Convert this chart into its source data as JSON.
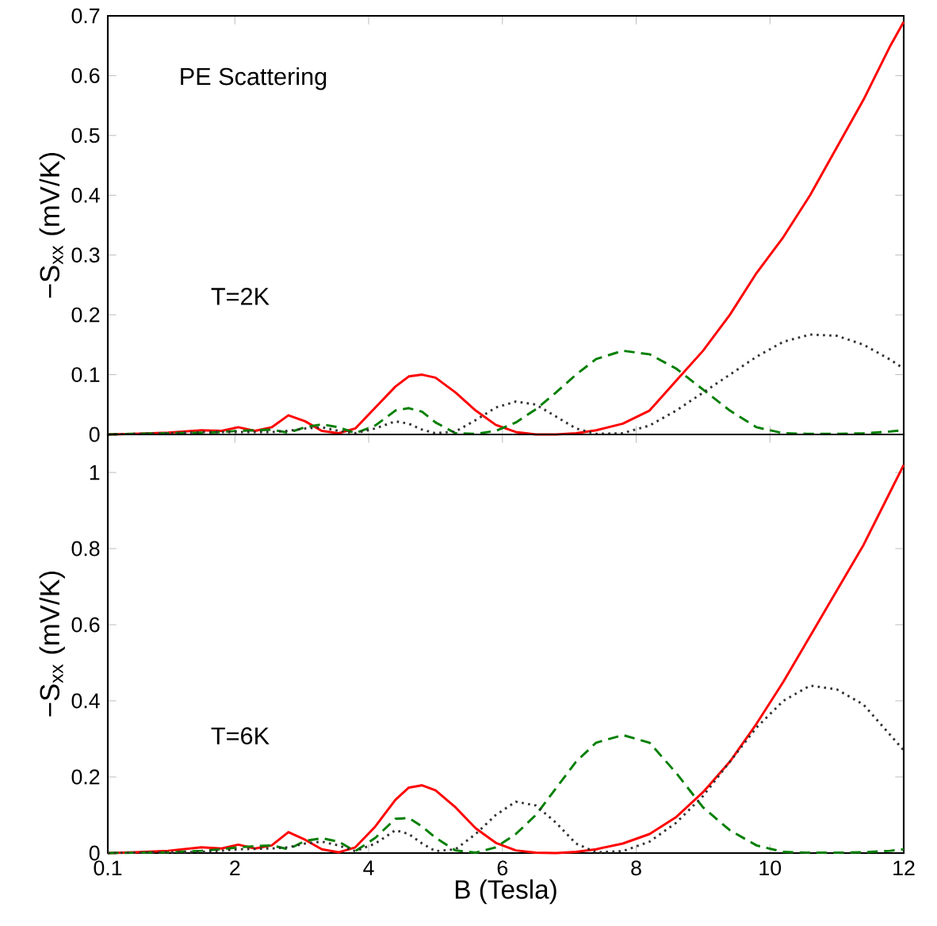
{
  "chart_data": [
    {
      "type": "line",
      "ylabel": "−S$_{xx}$ (mV/K)",
      "annotations": [
        "PE Scattering",
        "T=2K"
      ],
      "x": [
        0.1,
        0.5,
        1,
        1.5,
        1.8,
        2.05,
        2.3,
        2.55,
        2.8,
        3.05,
        3.3,
        3.55,
        3.8,
        4.1,
        4.4,
        4.6,
        4.8,
        5.0,
        5.3,
        5.6,
        5.9,
        6.2,
        6.5,
        6.8,
        7.1,
        7.4,
        7.8,
        8.2,
        8.6,
        9.0,
        9.4,
        9.8,
        10.2,
        10.6,
        11.0,
        11.4,
        11.8,
        12
      ],
      "series": [
        {
          "color": "#ff0000",
          "line_style": "solid",
          "values": [
            0,
            0.001,
            0.003,
            0.007,
            0.006,
            0.012,
            0.006,
            0.012,
            0.032,
            0.022,
            0.006,
            0.002,
            0.01,
            0.045,
            0.08,
            0.097,
            0.1,
            0.095,
            0.07,
            0.04,
            0.016,
            0.004,
            0,
            0,
            0.002,
            0.007,
            0.018,
            0.04,
            0.09,
            0.14,
            0.2,
            0.27,
            0.33,
            0.4,
            0.48,
            0.56,
            0.65,
            0.69
          ]
        },
        {
          "color": "#007f00",
          "line_style": "dashed",
          "values": [
            0,
            0.001,
            0.002,
            0.003,
            0.004,
            0.006,
            0.007,
            0.008,
            0.003,
            0.012,
            0.017,
            0.012,
            0.002,
            0.015,
            0.04,
            0.044,
            0.038,
            0.02,
            0.002,
            0.001,
            0.006,
            0.02,
            0.042,
            0.07,
            0.1,
            0.126,
            0.14,
            0.134,
            0.11,
            0.075,
            0.04,
            0.012,
            0.002,
            0.001,
            0.001,
            0.002,
            0.005,
            0.007
          ]
        },
        {
          "color": "#333333",
          "line_style": "dotted",
          "values": [
            0,
            0.001,
            0.002,
            0.004,
            0.004,
            0.004,
            0.004,
            0.004,
            0.006,
            0.01,
            0.012,
            0.006,
            0.002,
            0.01,
            0.022,
            0.018,
            0.008,
            0.002,
            0.005,
            0.024,
            0.045,
            0.055,
            0.05,
            0.03,
            0.01,
            0.001,
            0.002,
            0.015,
            0.04,
            0.07,
            0.1,
            0.13,
            0.155,
            0.167,
            0.165,
            0.15,
            0.125,
            0.11
          ]
        }
      ],
      "xlim": [
        0.1,
        12
      ],
      "xticks": [
        0.1,
        2,
        4,
        6,
        8,
        10,
        12
      ],
      "ylim": [
        0,
        0.7
      ],
      "yticks": [
        0,
        0.1,
        0.2,
        0.3,
        0.4,
        0.5,
        0.6,
        0.7
      ],
      "tick_labels": "y"
    },
    {
      "type": "line",
      "xlabel": "B (Tesla)",
      "ylabel": "−S$_{xx}$ (mV/K)",
      "annotations": [
        "T=6K"
      ],
      "x": [
        0.1,
        0.5,
        1,
        1.5,
        1.8,
        2.05,
        2.3,
        2.55,
        2.8,
        3.05,
        3.3,
        3.55,
        3.8,
        4.1,
        4.4,
        4.6,
        4.8,
        5.0,
        5.3,
        5.6,
        5.9,
        6.2,
        6.5,
        6.8,
        7.1,
        7.4,
        7.8,
        8.2,
        8.6,
        9.0,
        9.4,
        9.8,
        10.2,
        10.6,
        11.0,
        11.4,
        11.8,
        12
      ],
      "series": [
        {
          "color": "#ff0000",
          "line_style": "solid",
          "values": [
            0,
            0.002,
            0.006,
            0.015,
            0.012,
            0.022,
            0.012,
            0.02,
            0.055,
            0.035,
            0.01,
            0.002,
            0.015,
            0.07,
            0.14,
            0.172,
            0.178,
            0.165,
            0.12,
            0.065,
            0.027,
            0.007,
            0.001,
            0,
            0.003,
            0.01,
            0.025,
            0.05,
            0.095,
            0.16,
            0.24,
            0.34,
            0.45,
            0.57,
            0.69,
            0.81,
            0.95,
            1.02
          ]
        },
        {
          "color": "#007f00",
          "line_style": "dashed",
          "values": [
            0,
            0.001,
            0.002,
            0.006,
            0.01,
            0.015,
            0.018,
            0.02,
            0.01,
            0.032,
            0.039,
            0.03,
            0.005,
            0.04,
            0.09,
            0.092,
            0.07,
            0.04,
            0.007,
            0.001,
            0.015,
            0.05,
            0.1,
            0.17,
            0.24,
            0.29,
            0.31,
            0.29,
            0.21,
            0.12,
            0.06,
            0.02,
            0.003,
            0.001,
            0.001,
            0.002,
            0.006,
            0.01
          ]
        },
        {
          "color": "#333333",
          "line_style": "dotted",
          "values": [
            0,
            0.001,
            0.002,
            0.003,
            0.006,
            0.01,
            0.011,
            0.012,
            0.015,
            0.025,
            0.03,
            0.02,
            0.005,
            0.025,
            0.06,
            0.05,
            0.025,
            0.005,
            0.01,
            0.05,
            0.1,
            0.135,
            0.125,
            0.08,
            0.025,
            0.002,
            0.005,
            0.03,
            0.08,
            0.15,
            0.24,
            0.33,
            0.4,
            0.44,
            0.43,
            0.39,
            0.31,
            0.27
          ]
        }
      ],
      "xlim": [
        0.1,
        12
      ],
      "xticks": [
        0.1,
        2,
        4,
        6,
        8,
        10,
        12
      ],
      "ylim": [
        0,
        1.1
      ],
      "yticks": [
        0,
        0.2,
        0.4,
        0.6,
        0.8,
        1
      ]
    }
  ]
}
